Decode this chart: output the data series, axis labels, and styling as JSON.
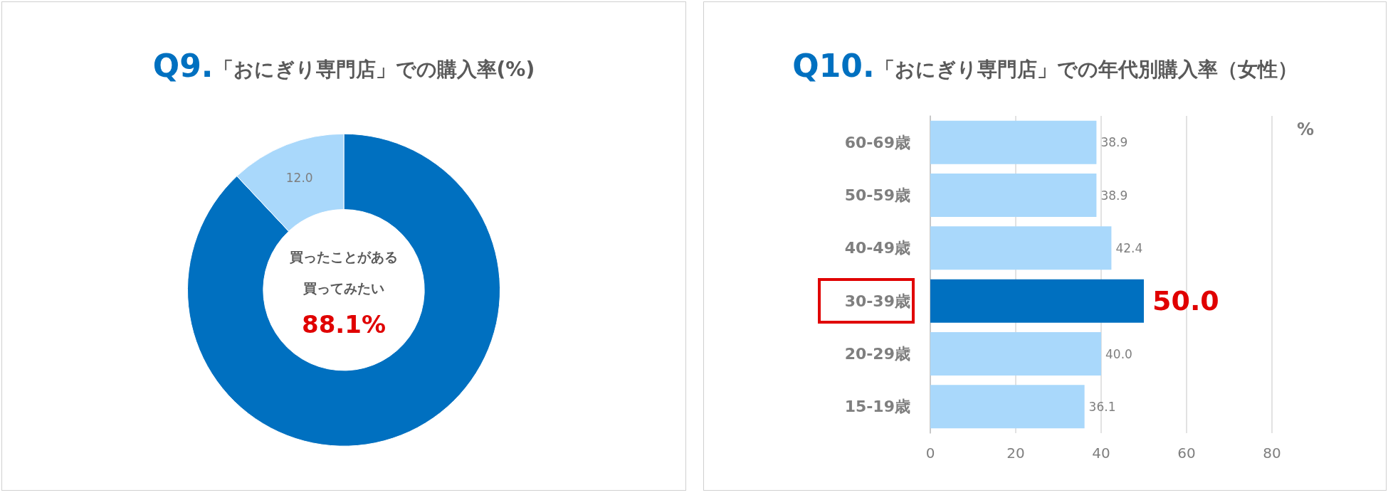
{
  "chart_data": [
    {
      "type": "donut",
      "title": "Q9.「おにぎり専門店」での購入率(%)",
      "categories": [
        null,
        null
      ],
      "values": [
        88.1,
        12.0
      ],
      "colors": [
        "#0070c0",
        "#a9d8fb"
      ],
      "value_labels": [
        null,
        "12.0"
      ],
      "annotations": [
        "買ったことがある",
        "買ってみたい",
        "88.1%"
      ],
      "legend": false
    },
    {
      "type": "bar",
      "orientation": "horizontal",
      "title": "Q10.「おにぎり専門店」での年代別購入率（女性）",
      "xlabel": "%",
      "categories": [
        "60-69歳",
        "50-59歳",
        "40-49歳",
        "30-39歳",
        "20-29歳",
        "15-19歳"
      ],
      "values": [
        38.9,
        38.9,
        42.4,
        50.0,
        40.0,
        36.1
      ],
      "colors": [
        "#a9d8fb",
        "#a9d8fb",
        "#a9d8fb",
        "#0070c0",
        "#a9d8fb",
        "#a9d8fb"
      ],
      "xlim": [
        0,
        80
      ],
      "xticks": [
        0,
        20,
        40,
        60,
        80
      ],
      "grid": "x",
      "value_labels": [
        "38.9",
        "38.9",
        "42.4",
        "50.0",
        "40.0",
        "36.1"
      ],
      "legend": false
    }
  ]
}
